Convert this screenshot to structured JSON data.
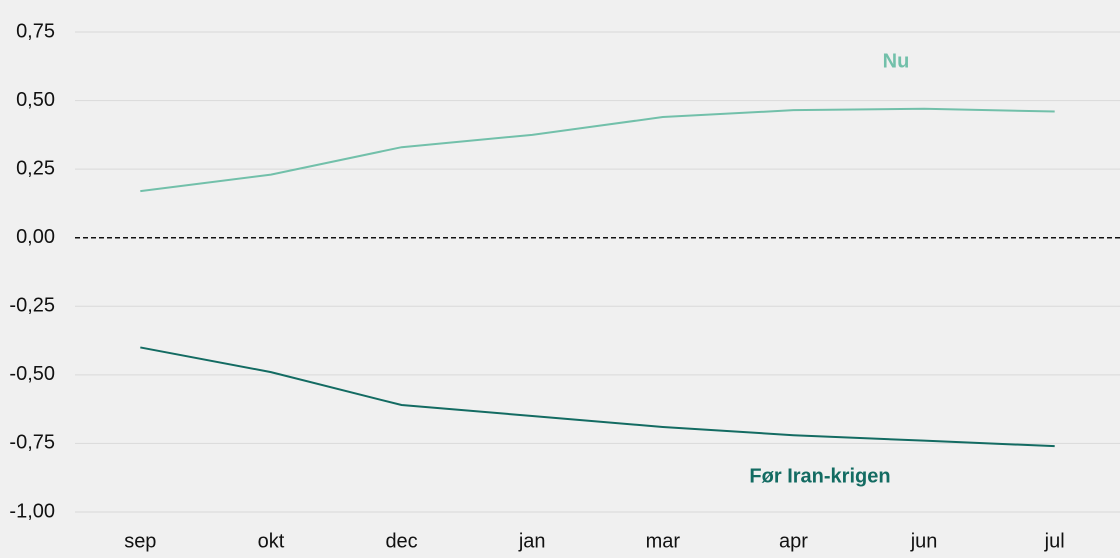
{
  "chart_data": {
    "type": "line",
    "categories": [
      "sep",
      "okt",
      "dec",
      "jan",
      "mar",
      "apr",
      "jun",
      "jul"
    ],
    "series": [
      {
        "name": "Nu",
        "color": "#72c0aa",
        "values": [
          0.17,
          0.23,
          0.33,
          0.375,
          0.44,
          0.465,
          0.47,
          0.46
        ]
      },
      {
        "name": "Før Iran-krigen",
        "color": "#136b62",
        "values": [
          -0.4,
          -0.49,
          -0.61,
          -0.65,
          -0.69,
          -0.72,
          -0.74,
          -0.76
        ]
      }
    ],
    "ylim": [
      -1.0,
      0.75
    ],
    "yticks": [
      {
        "value": -1.0,
        "label": "-1,00"
      },
      {
        "value": -0.75,
        "label": "-0,75"
      },
      {
        "value": -0.5,
        "label": "-0,50"
      },
      {
        "value": -0.25,
        "label": "-0,25"
      },
      {
        "value": 0,
        "label": "0,00"
      },
      {
        "value": 0.25,
        "label": "0,25"
      },
      {
        "value": 0.5,
        "label": "0,50"
      },
      {
        "value": 0.75,
        "label": "0,75"
      }
    ],
    "grid": true
  }
}
